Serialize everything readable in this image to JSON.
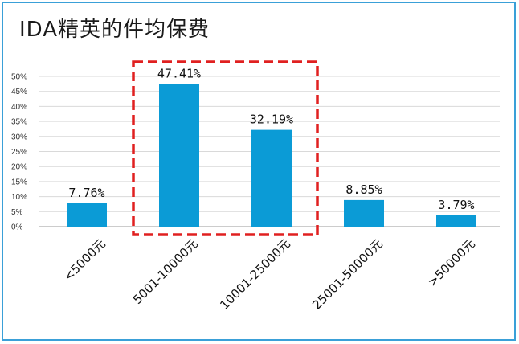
{
  "chart_data": {
    "type": "bar",
    "title": "IDA精英的件均保费",
    "categories": [
      "<5000元",
      "5001-10000元",
      "10001-25000元",
      "25001-50000元",
      ">50000元"
    ],
    "values": [
      7.76,
      47.41,
      32.19,
      8.85,
      3.79
    ],
    "data_labels": [
      "7.76%",
      "47.41%",
      "32.19%",
      "8.85%",
      "3.79%"
    ],
    "ylim": [
      0,
      50
    ],
    "yticks": [
      "0%",
      "5%",
      "10%",
      "15%",
      "20%",
      "25%",
      "30%",
      "35%",
      "40%",
      "45%",
      "50%"
    ],
    "grid": true,
    "highlight_categories": [
      1,
      2
    ],
    "colors": {
      "bar": "#0b9bd6",
      "highlight": "#e02020",
      "frame": "#3aa0d8",
      "grid": "#d9d9d9"
    }
  }
}
